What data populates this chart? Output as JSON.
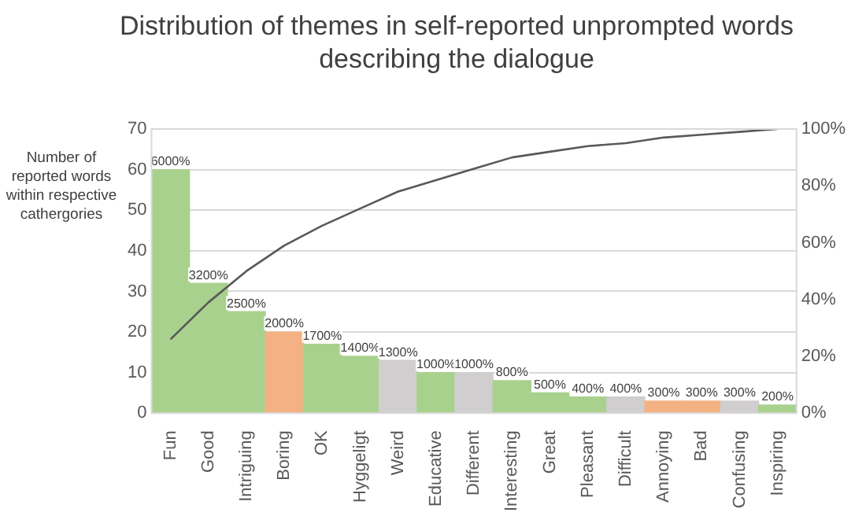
{
  "chart_data": {
    "type": "bar",
    "title": "Distribution of themes in self-reported unprompted words describing  the dialogue",
    "ylabel": "Number of reported words within respective cathergories",
    "categories": [
      "Fun",
      "Good",
      "Intriguing",
      "Boring",
      "OK",
      "Hyggeligt",
      "Weird",
      "Educative",
      "Different",
      "Interesting",
      "Great",
      "Pleasant",
      "Difficult",
      "Annoying",
      "Bad",
      "Confusing",
      "Inspiring"
    ],
    "series": [
      {
        "colors": [
          "#a9d18e",
          "#a9d18e",
          "#a9d18e",
          "#f4b183",
          "#a9d18e",
          "#a9d18e",
          "#d0cece",
          "#a9d18e",
          "#d0cece",
          "#a9d18e",
          "#a9d18e",
          "#a9d18e",
          "#d0cece",
          "#f4b183",
          "#f4b183",
          "#d0cece",
          "#a9d18e"
        ],
        "values": [
          60,
          32,
          25,
          20,
          17,
          14,
          13,
          10,
          10,
          8,
          5,
          4,
          4,
          3,
          3,
          3,
          2
        ],
        "value_labels": [
          "6000%",
          "3200%",
          "2500%",
          "2000%",
          "1700%",
          "1400%",
          "1300%",
          "1000%",
          "1000%",
          "800%",
          "500%",
          "400%",
          "400%",
          "300%",
          "300%",
          "300%",
          "200%"
        ]
      },
      {
        "type": "line",
        "axis": "y2",
        "color": "#595959",
        "values": [
          26,
          39,
          50,
          59,
          66,
          72,
          78,
          82,
          86,
          90,
          92,
          94,
          95,
          97,
          98,
          99,
          100
        ]
      }
    ],
    "ylim": [
      0,
      70
    ],
    "yticks": [
      0,
      10,
      20,
      30,
      40,
      50,
      60,
      70
    ],
    "y2lim": [
      0,
      100
    ],
    "y2ticks": [
      {
        "value": 0,
        "label": "0%"
      },
      {
        "value": 20,
        "label": "20%"
      },
      {
        "value": 40,
        "label": "40%"
      },
      {
        "value": 60,
        "label": "60%"
      },
      {
        "value": 80,
        "label": "80%"
      },
      {
        "value": 100,
        "label": "100%"
      }
    ],
    "grid": "y",
    "legend": false,
    "marker": "none",
    "line_style": "solid"
  }
}
